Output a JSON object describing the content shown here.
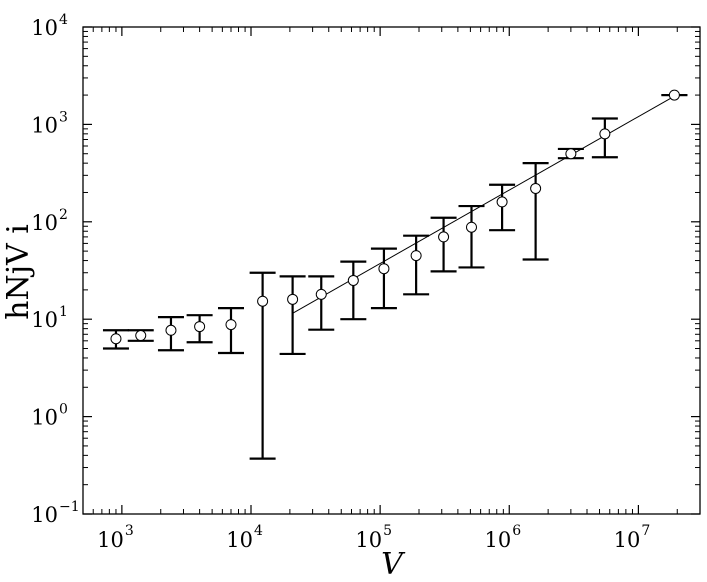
{
  "chart_data": {
    "type": "scatter",
    "title": "",
    "xlabel": "V",
    "ylabel": "hNjV i",
    "x_scale": "log",
    "y_scale": "log",
    "xlim": [
      500,
      30000000
    ],
    "ylim": [
      0.1,
      10000
    ],
    "grid": false,
    "x_ticks": [
      {
        "value": 1000,
        "base": "10",
        "exp": "3"
      },
      {
        "value": 10000,
        "base": "10",
        "exp": "4"
      },
      {
        "value": 100000,
        "base": "10",
        "exp": "5"
      },
      {
        "value": 1000000,
        "base": "10",
        "exp": "6"
      },
      {
        "value": 10000000,
        "base": "10",
        "exp": "7"
      }
    ],
    "y_ticks": [
      {
        "value": 0.1,
        "base": "10",
        "exp": "−1"
      },
      {
        "value": 1,
        "base": "10",
        "exp": "0"
      },
      {
        "value": 10,
        "base": "10",
        "exp": "1"
      },
      {
        "value": 100,
        "base": "10",
        "exp": "2"
      },
      {
        "value": 1000,
        "base": "10",
        "exp": "3"
      },
      {
        "value": 10000,
        "base": "10",
        "exp": "4"
      }
    ],
    "series": [
      {
        "marker": "circle",
        "points": [
          {
            "x": 900,
            "y": 6.3,
            "low": 5.0,
            "high": 7.7
          },
          {
            "x": 1400,
            "y": 6.8,
            "low": 6.0,
            "high": 7.7
          },
          {
            "x": 2400,
            "y": 7.7,
            "low": 4.8,
            "high": 10.5
          },
          {
            "x": 4000,
            "y": 8.4,
            "low": 5.8,
            "high": 11.0
          },
          {
            "x": 7000,
            "y": 8.8,
            "low": 4.5,
            "high": 13.0
          },
          {
            "x": 12300,
            "y": 15.3,
            "low": 0.37,
            "high": 30.0
          },
          {
            "x": 21000,
            "y": 16.0,
            "low": 4.4,
            "high": 27.5
          },
          {
            "x": 35000,
            "y": 18.0,
            "low": 7.8,
            "high": 27.5
          },
          {
            "x": 62000,
            "y": 25.0,
            "low": 10.0,
            "high": 39.0
          },
          {
            "x": 107000,
            "y": 33.0,
            "low": 13.0,
            "high": 53.0
          },
          {
            "x": 190000,
            "y": 45.0,
            "low": 18.0,
            "high": 72.0
          },
          {
            "x": 310000,
            "y": 70.0,
            "low": 31.0,
            "high": 110.0
          },
          {
            "x": 510000,
            "y": 88.0,
            "low": 34.0,
            "high": 145.0
          },
          {
            "x": 880000,
            "y": 160.0,
            "low": 82.0,
            "high": 240.0
          },
          {
            "x": 1600000,
            "y": 220.0,
            "low": 41.0,
            "high": 400.0
          },
          {
            "x": 3000000,
            "y": 500.0,
            "low": 450.0,
            "high": 560.0
          },
          {
            "x": 5500000,
            "y": 800.0,
            "low": 460.0,
            "high": 1150.0
          },
          {
            "x": 19000000,
            "y": 2000.0,
            "low": 2000.0,
            "high": 2000.0
          }
        ]
      }
    ],
    "fit_line": {
      "x": [
        21000,
        19000000
      ],
      "y": [
        11.5,
        1950
      ]
    },
    "colors": {
      "ink": "#000000",
      "background": "#ffffff"
    }
  }
}
